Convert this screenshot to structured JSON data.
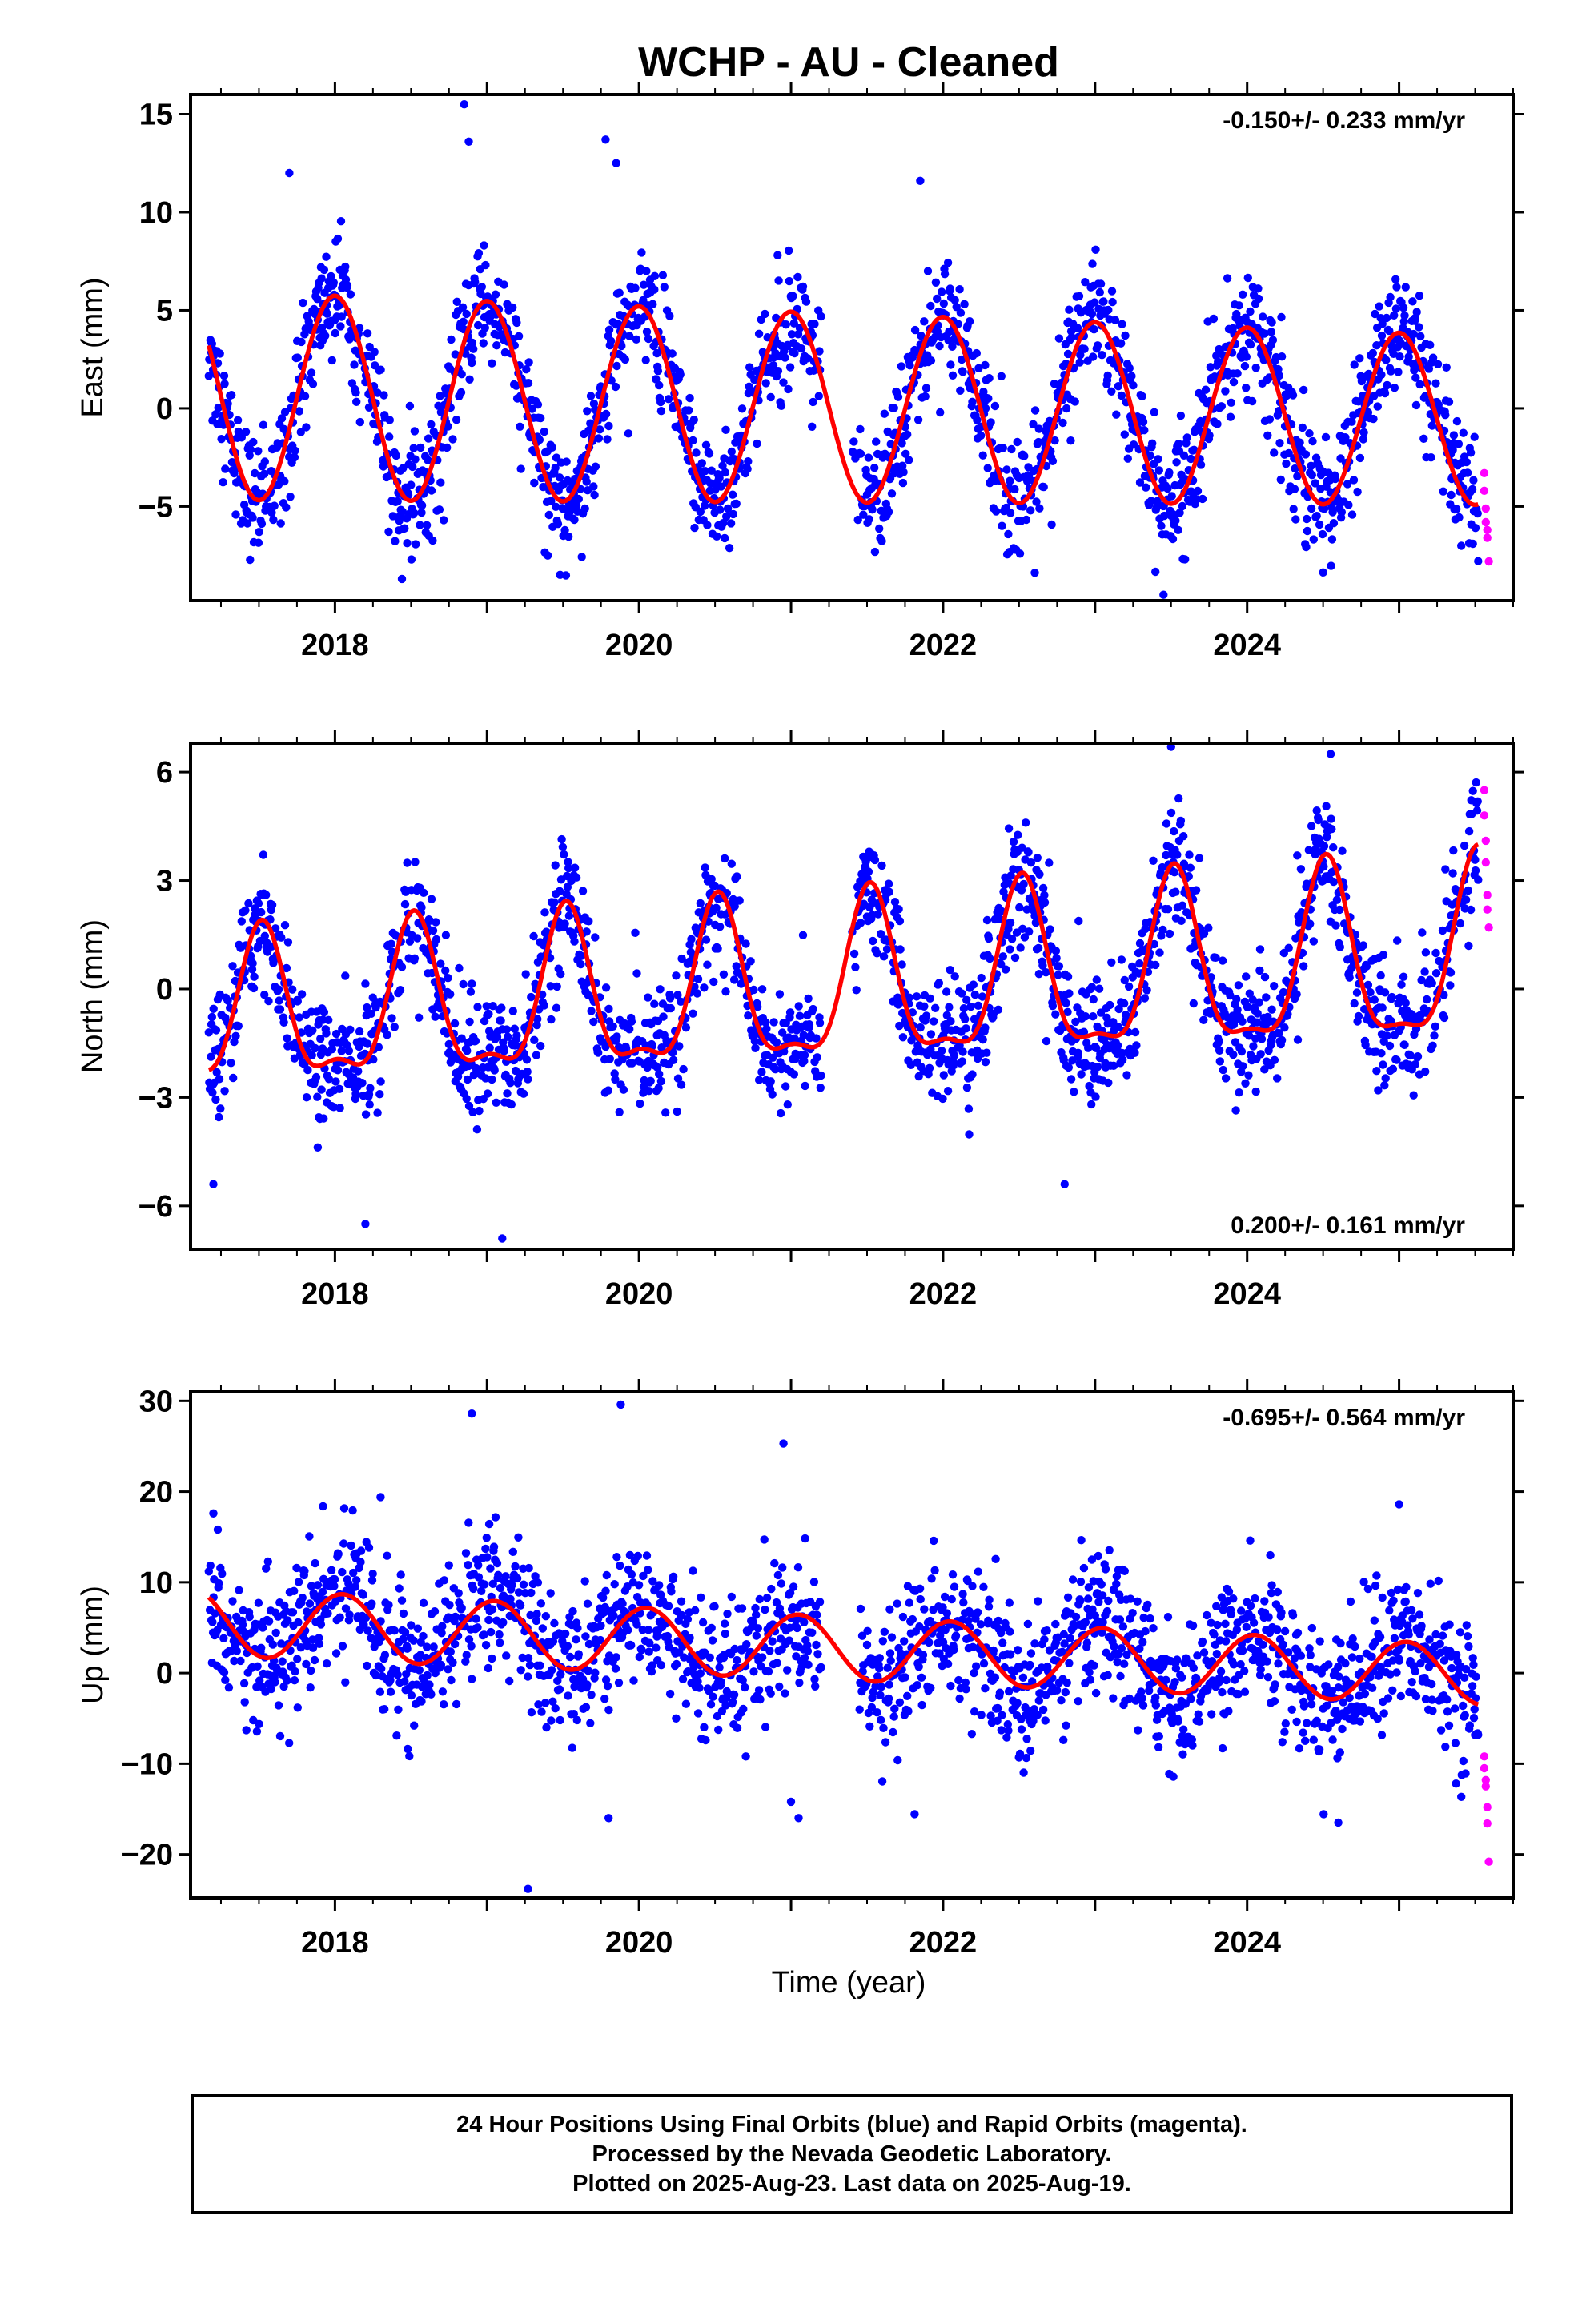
{
  "title": "WCHP  - AU - Cleaned",
  "xlabel": "Time (year)",
  "footer": {
    "line1": "24 Hour Positions Using Final Orbits (blue) and Rapid Orbits (magenta).",
    "line2": "Processed by the Nevada Geodetic Laboratory.",
    "line3": "Plotted on 2025-Aug-23. Last data on 2025-Aug-19."
  },
  "colors": {
    "final": "#0000ff",
    "rapid": "#ff00ff",
    "model": "#ff0000"
  },
  "chart_data": [
    {
      "type": "scatter",
      "component": "east",
      "ylabel": "East (mm)",
      "rate_label": "-0.150+/- 0.233 mm/yr",
      "rate_position": "top-right",
      "xlim": [
        2017.05,
        2025.75
      ],
      "ylim": [
        -9.8,
        16.0
      ],
      "yticks": [
        -5,
        0,
        5,
        10,
        15
      ],
      "xticks": [
        2018,
        2020,
        2022,
        2024
      ],
      "model": {
        "offset": 0.0,
        "trend": -0.15,
        "annual_amp": 4.8,
        "annual_peak": 0.0,
        "semiannual_amp": 0.0,
        "semiannual_peak": 0.0,
        "amp_drift": -0.12
      },
      "final_orbits": {
        "x_range": [
          2017.17,
          2025.52
        ],
        "noise_sd": 1.5
      },
      "rapid_orbits": {
        "x": [
          2025.56,
          2025.56,
          2025.57,
          2025.57,
          2025.58,
          2025.58,
          2025.59
        ],
        "y": [
          -3.3,
          -4.2,
          -5.1,
          -5.8,
          -6.2,
          -6.6,
          -7.8
        ]
      },
      "gaps": [
        [
          2021.2,
          2021.4
        ]
      ],
      "outliers": [
        {
          "x": 2018.85,
          "y": 15.5
        },
        {
          "x": 2018.88,
          "y": 13.6
        },
        {
          "x": 2019.78,
          "y": 13.7
        },
        {
          "x": 2019.85,
          "y": 12.5
        },
        {
          "x": 2017.7,
          "y": 12.0
        },
        {
          "x": 2021.85,
          "y": 11.6
        },
        {
          "x": 2019.4,
          "y": -7.5
        },
        {
          "x": 2023.45,
          "y": -9.5
        }
      ]
    },
    {
      "type": "scatter",
      "component": "north",
      "ylabel": "North (mm)",
      "rate_label": "0.200+/- 0.161 mm/yr",
      "rate_position": "bottom-right",
      "xlim": [
        2017.05,
        2025.75
      ],
      "ylim": [
        -7.2,
        6.8
      ],
      "yticks": [
        -6,
        -3,
        0,
        3,
        6
      ],
      "xticks": [
        2018,
        2020,
        2022,
        2024
      ],
      "model": {
        "offset": 0.0,
        "trend": 0.2,
        "annual_amp": 2.2,
        "annual_peak": 0.52,
        "semiannual_amp": 0.75,
        "semiannual_peak": 0.02,
        "amp_drift": 0.06
      },
      "final_orbits": {
        "x_range": [
          2017.17,
          2025.52
        ],
        "noise_sd": 0.85
      },
      "rapid_orbits": {
        "x": [
          2025.56,
          2025.56,
          2025.57,
          2025.57,
          2025.58,
          2025.58,
          2025.59
        ],
        "y": [
          5.5,
          4.8,
          4.1,
          3.5,
          2.6,
          2.2,
          1.7
        ]
      },
      "gaps": [
        [
          2021.2,
          2021.4
        ]
      ],
      "outliers": [
        {
          "x": 2023.5,
          "y": 6.7
        },
        {
          "x": 2024.55,
          "y": 6.5
        },
        {
          "x": 2019.1,
          "y": -6.9
        },
        {
          "x": 2018.2,
          "y": -6.5
        },
        {
          "x": 2022.8,
          "y": -5.4
        },
        {
          "x": 2017.2,
          "y": -5.4
        }
      ]
    },
    {
      "type": "scatter",
      "component": "up",
      "ylabel": "Up (mm)",
      "rate_label": "-0.695+/- 0.564 mm/yr",
      "rate_position": "top-right",
      "xlim": [
        2017.05,
        2025.75
      ],
      "ylim": [
        -24.8,
        31.0
      ],
      "yticks": [
        -20,
        -10,
        0,
        10,
        20,
        30
      ],
      "xticks": [
        2018,
        2020,
        2022,
        2024
      ],
      "model": {
        "offset": 2.6,
        "trend": -0.7,
        "annual_amp": 3.5,
        "annual_peak": 0.05,
        "semiannual_amp": 0.0,
        "semiannual_peak": 0.0,
        "amp_drift": -0.05
      },
      "final_orbits": {
        "x_range": [
          2017.17,
          2025.52
        ],
        "noise_sd": 3.8
      },
      "rapid_orbits": {
        "x": [
          2025.56,
          2025.56,
          2025.57,
          2025.57,
          2025.58,
          2025.58,
          2025.59
        ],
        "y": [
          -9.2,
          -10.5,
          -11.8,
          -12.5,
          -14.8,
          -16.6,
          -20.8
        ]
      },
      "gaps": [
        [
          2021.2,
          2021.45
        ]
      ],
      "outliers": [
        {
          "x": 2019.88,
          "y": 29.6
        },
        {
          "x": 2018.9,
          "y": 28.6
        },
        {
          "x": 2020.95,
          "y": 25.3
        },
        {
          "x": 2019.27,
          "y": -23.8
        },
        {
          "x": 2019.8,
          "y": -16.0
        },
        {
          "x": 2021.0,
          "y": -14.2
        },
        {
          "x": 2021.05,
          "y": -16.0
        },
        {
          "x": 2024.6,
          "y": -16.5
        },
        {
          "x": 2025.0,
          "y": 18.6
        },
        {
          "x": 2017.2,
          "y": 17.6
        },
        {
          "x": 2018.3,
          "y": 19.4
        }
      ]
    }
  ]
}
